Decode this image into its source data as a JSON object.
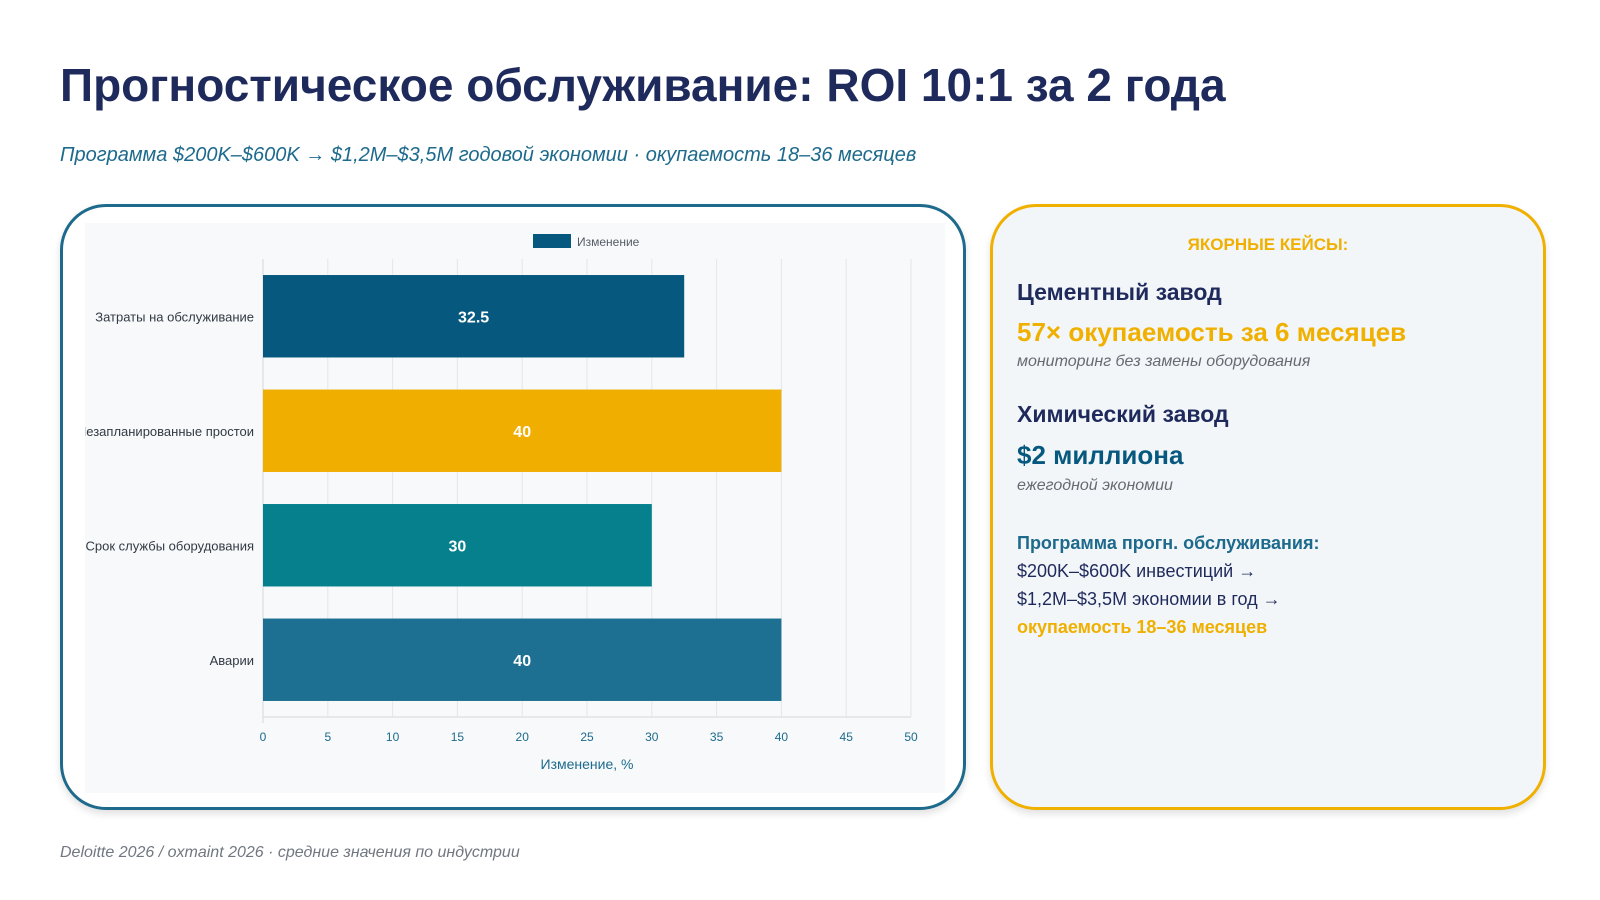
{
  "title": "Прогностическое обслуживание: ROI 10:1 за 2 года",
  "subtitle": "Программа $200K–$600K → $1,2M–$3,5M годовой экономии · окупаемость 18–36 месяцев",
  "chart_data": {
    "type": "bar",
    "orientation": "horizontal",
    "categories": [
      "Затраты на обслуживание",
      "Незапланированные простои",
      "Срок службы оборудования",
      "Аварии"
    ],
    "series": [
      {
        "name": "Изменение",
        "values": [
          32.5,
          40,
          30,
          40
        ]
      }
    ],
    "data_labels": [
      "32.5",
      "40",
      "30",
      "40"
    ],
    "bar_colors": [
      "#06587e",
      "#f0ae00",
      "#05808c",
      "#1d7092"
    ],
    "legend_color": "#06587e",
    "legend_placement": "top-center",
    "xlabel": "Изменение, %",
    "ylabel": "",
    "xlim": [
      0,
      50
    ],
    "x_ticks": [
      0,
      5,
      10,
      15,
      20,
      25,
      30,
      35,
      40,
      45,
      50
    ],
    "grid": true
  },
  "cases": {
    "heading": "ЯКОРНЫЕ КЕЙСЫ:",
    "items": [
      {
        "name": "Цементный завод",
        "value": "57× окупаемость за 6 месяцев",
        "value_color": "#f0b000",
        "note": "мониторинг без замены оборудования"
      },
      {
        "name": "Химический завод",
        "value": "$2 миллиона",
        "value_color": "#06587e",
        "note": "ежегодной экономии"
      }
    ],
    "program": {
      "title": "Программа прогн. обслуживания:",
      "line1": "$200K–$600K инвестиций →",
      "line2": "$1,2M–$3,5M экономии в год →",
      "line3": "окупаемость 18–36 месяцев"
    }
  },
  "footer": "Deloitte 2026 / oxmaint 2026 · средние значения по индустрии",
  "colors": {
    "title": "#1f2a5c",
    "accent_blue": "#1d6a8c",
    "accent_gold": "#f0b000"
  }
}
